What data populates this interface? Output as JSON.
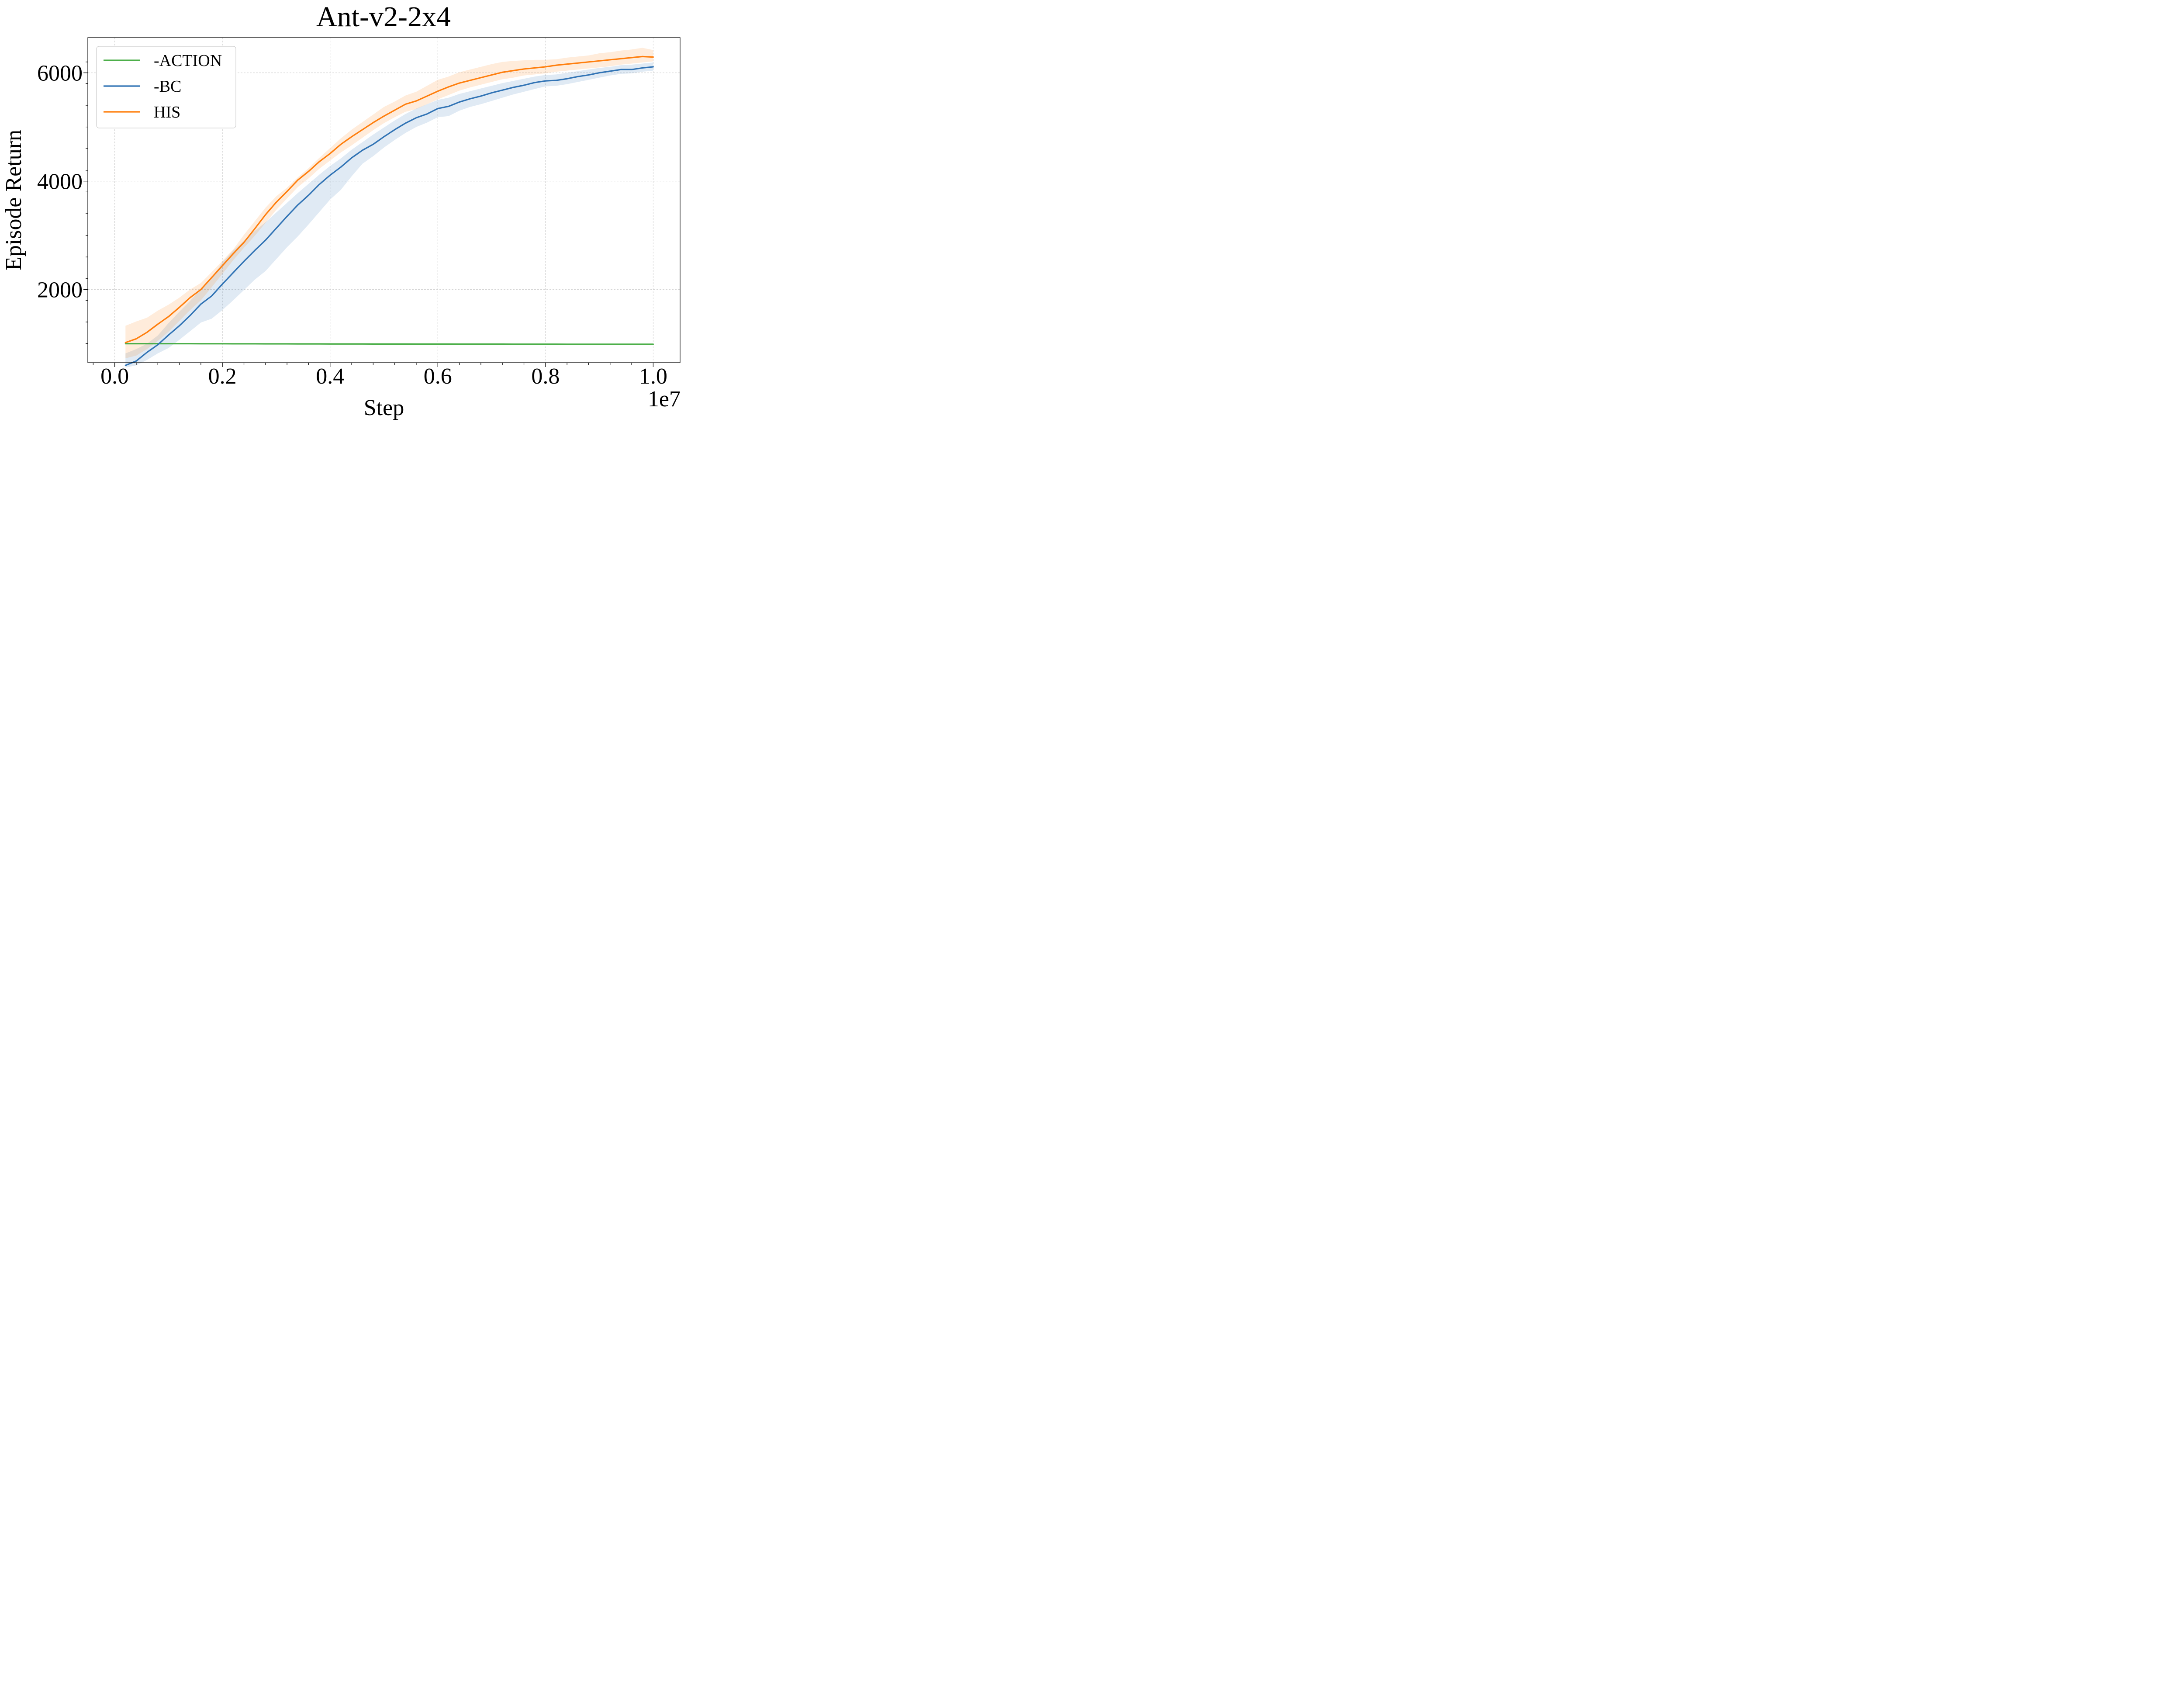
{
  "chart_data": {
    "type": "line",
    "title": "Ant-v2-2x4",
    "xlabel": "Step",
    "ylabel": "Episode Return",
    "x_scale_label": "1e7",
    "xlim": [
      -0.05,
      1.05
    ],
    "ylim": [
      650,
      6650
    ],
    "xticks": [
      0.0,
      0.2,
      0.4,
      0.6,
      0.8,
      1.0
    ],
    "xtick_labels": [
      "0.0",
      "0.2",
      "0.4",
      "0.6",
      "0.8",
      "1.0"
    ],
    "yticks": [
      2000,
      4000,
      6000
    ],
    "ytick_labels": [
      "2000",
      "4000",
      "6000"
    ],
    "grid": true,
    "legend_position": "top-left",
    "x": [
      0.02,
      0.04,
      0.06,
      0.08,
      0.1,
      0.12,
      0.14,
      0.16,
      0.18,
      0.2,
      0.22,
      0.24,
      0.26,
      0.28,
      0.3,
      0.32,
      0.34,
      0.36,
      0.38,
      0.4,
      0.42,
      0.44,
      0.46,
      0.48,
      0.5,
      0.52,
      0.54,
      0.56,
      0.58,
      0.6,
      0.62,
      0.64,
      0.66,
      0.68,
      0.7,
      0.72,
      0.74,
      0.76,
      0.78,
      0.8,
      0.82,
      0.84,
      0.86,
      0.88,
      0.9,
      0.92,
      0.94,
      0.96,
      0.98,
      1.0
    ],
    "series": [
      {
        "name": "-ACTION",
        "color": "#4daf4a",
        "values": [
          1000,
          1000,
          1000,
          1000,
          1000,
          1000,
          1000,
          999,
          999,
          999,
          998,
          998,
          998,
          997,
          997,
          997,
          996,
          996,
          996,
          995,
          995,
          995,
          995,
          994,
          994,
          994,
          994,
          993,
          993,
          993,
          993,
          992,
          992,
          992,
          992,
          992,
          991,
          991,
          991,
          991,
          991,
          990,
          990,
          990,
          990,
          990,
          990,
          990,
          990,
          990
        ],
        "band": null
      },
      {
        "name": "-BC",
        "color": "#3274b5",
        "values": [
          600,
          680,
          840,
          980,
          1160,
          1330,
          1520,
          1730,
          1880,
          2100,
          2310,
          2520,
          2720,
          2910,
          3130,
          3350,
          3560,
          3740,
          3940,
          4110,
          4260,
          4430,
          4570,
          4680,
          4820,
          4950,
          5070,
          5170,
          5240,
          5340,
          5380,
          5460,
          5520,
          5570,
          5630,
          5680,
          5730,
          5770,
          5820,
          5850,
          5860,
          5890,
          5930,
          5960,
          6000,
          6030,
          6060,
          6060,
          6090,
          6110
        ],
        "band": [
          [
            560,
            820
          ],
          [
            600,
            900
          ],
          [
            700,
            1000
          ],
          [
            820,
            1150
          ],
          [
            920,
            1380
          ],
          [
            1070,
            1590
          ],
          [
            1230,
            1790
          ],
          [
            1390,
            2010
          ],
          [
            1460,
            2220
          ],
          [
            1620,
            2500
          ],
          [
            1800,
            2720
          ],
          [
            1990,
            2900
          ],
          [
            2180,
            3080
          ],
          [
            2340,
            3240
          ],
          [
            2560,
            3420
          ],
          [
            2780,
            3600
          ],
          [
            2980,
            3780
          ],
          [
            3200,
            3950
          ],
          [
            3430,
            4120
          ],
          [
            3660,
            4280
          ],
          [
            3840,
            4420
          ],
          [
            4090,
            4580
          ],
          [
            4320,
            4720
          ],
          [
            4460,
            4860
          ],
          [
            4620,
            4990
          ],
          [
            4760,
            5120
          ],
          [
            4890,
            5240
          ],
          [
            5000,
            5340
          ],
          [
            5080,
            5420
          ],
          [
            5180,
            5500
          ],
          [
            5200,
            5540
          ],
          [
            5300,
            5610
          ],
          [
            5370,
            5660
          ],
          [
            5420,
            5710
          ],
          [
            5480,
            5760
          ],
          [
            5540,
            5810
          ],
          [
            5600,
            5850
          ],
          [
            5650,
            5890
          ],
          [
            5700,
            5930
          ],
          [
            5750,
            5960
          ],
          [
            5760,
            5970
          ],
          [
            5790,
            6000
          ],
          [
            5830,
            6030
          ],
          [
            5870,
            6060
          ],
          [
            5910,
            6090
          ],
          [
            5950,
            6110
          ],
          [
            5980,
            6140
          ],
          [
            5990,
            6150
          ],
          [
            6020,
            6170
          ],
          [
            6040,
            6190
          ]
        ]
      },
      {
        "name": "HIS",
        "color": "#ff7f0e",
        "values": [
          1020,
          1090,
          1210,
          1360,
          1500,
          1670,
          1850,
          2000,
          2220,
          2440,
          2660,
          2870,
          3120,
          3380,
          3610,
          3810,
          4020,
          4180,
          4360,
          4510,
          4680,
          4820,
          4950,
          5080,
          5200,
          5310,
          5420,
          5480,
          5570,
          5660,
          5740,
          5810,
          5860,
          5910,
          5960,
          6010,
          6040,
          6070,
          6090,
          6110,
          6140,
          6160,
          6180,
          6200,
          6220,
          6240,
          6260,
          6280,
          6300,
          6290
        ],
        "band": [
          [
            730,
            1330
          ],
          [
            780,
            1410
          ],
          [
            900,
            1480
          ],
          [
            1050,
            1610
          ],
          [
            1220,
            1720
          ],
          [
            1420,
            1850
          ],
          [
            1620,
            2000
          ],
          [
            1800,
            2120
          ],
          [
            2040,
            2320
          ],
          [
            2290,
            2530
          ],
          [
            2540,
            2740
          ],
          [
            2770,
            3010
          ],
          [
            2990,
            3260
          ],
          [
            3230,
            3510
          ],
          [
            3470,
            3720
          ],
          [
            3680,
            3880
          ],
          [
            3890,
            4070
          ],
          [
            4050,
            4240
          ],
          [
            4230,
            4430
          ],
          [
            4380,
            4610
          ],
          [
            4530,
            4790
          ],
          [
            4660,
            4950
          ],
          [
            4800,
            5090
          ],
          [
            4940,
            5230
          ],
          [
            5070,
            5370
          ],
          [
            5180,
            5470
          ],
          [
            5280,
            5580
          ],
          [
            5330,
            5650
          ],
          [
            5420,
            5760
          ],
          [
            5510,
            5870
          ],
          [
            5590,
            5930
          ],
          [
            5670,
            6010
          ],
          [
            5730,
            6060
          ],
          [
            5780,
            6110
          ],
          [
            5830,
            6160
          ],
          [
            5880,
            6200
          ],
          [
            5910,
            6220
          ],
          [
            5950,
            6230
          ],
          [
            5970,
            6240
          ],
          [
            5990,
            6240
          ],
          [
            6020,
            6250
          ],
          [
            6040,
            6280
          ],
          [
            6060,
            6300
          ],
          [
            6080,
            6320
          ],
          [
            6100,
            6360
          ],
          [
            6120,
            6380
          ],
          [
            6150,
            6410
          ],
          [
            6170,
            6430
          ],
          [
            6190,
            6460
          ],
          [
            6210,
            6420
          ]
        ]
      }
    ]
  }
}
